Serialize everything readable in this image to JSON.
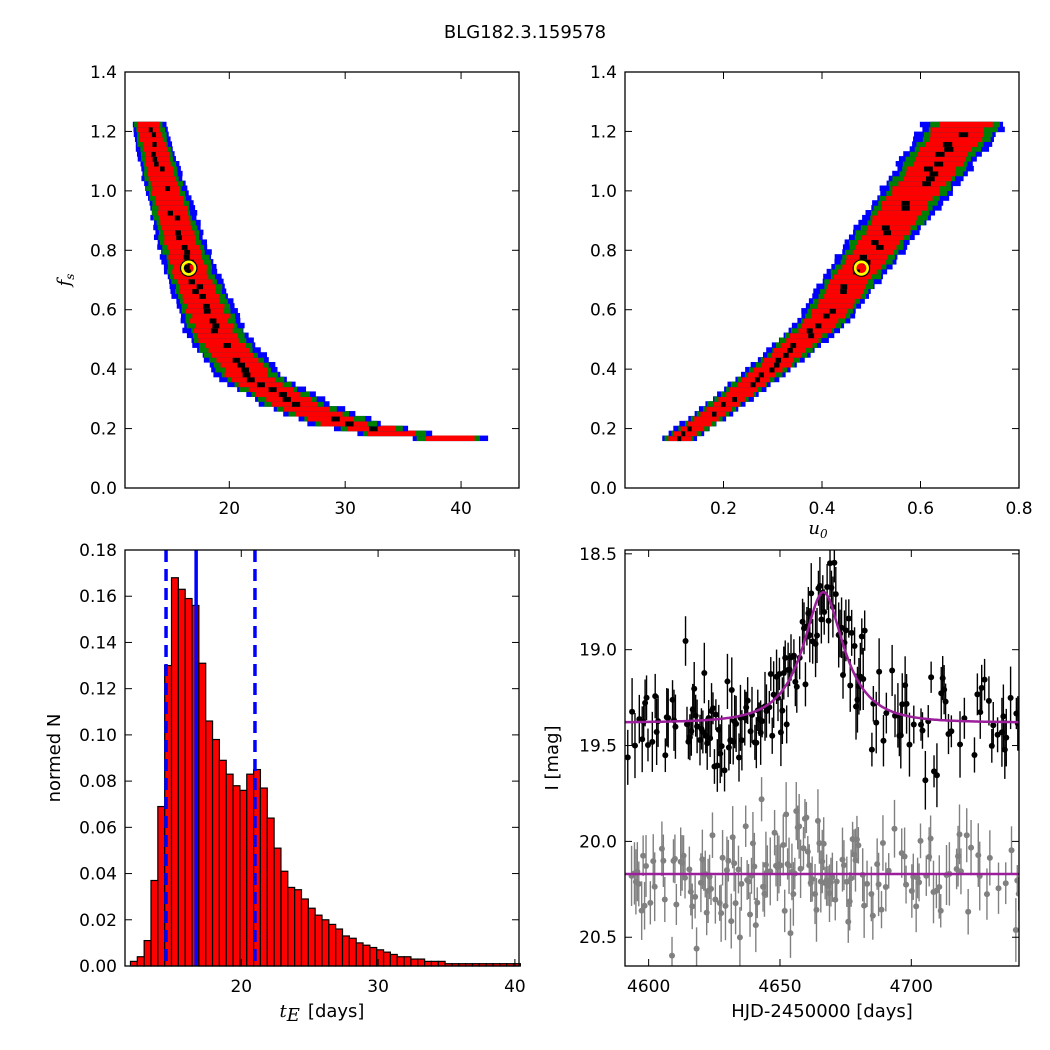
{
  "title": "BLG182.3.159578",
  "panels": {
    "top_left": {
      "ylabel_main": "f",
      "ylabel_sub": "s",
      "xlim": [
        11,
        45
      ],
      "ylim": [
        0,
        1.4
      ],
      "xticks": [
        "20",
        "30",
        "40"
      ],
      "yticks": [
        "0.0",
        "0.2",
        "0.4",
        "0.6",
        "0.8",
        "1.0",
        "1.2",
        "1.4"
      ]
    },
    "top_right": {
      "xlabel_main": "u",
      "xlabel_sub": "0",
      "xlim": [
        0,
        0.8
      ],
      "ylim": [
        0,
        1.4
      ],
      "xticks": [
        "0.2",
        "0.4",
        "0.6",
        "0.8"
      ],
      "yticks": [
        "0.0",
        "0.2",
        "0.4",
        "0.6",
        "0.8",
        "1.0",
        "1.2",
        "1.4"
      ]
    },
    "bottom_left": {
      "xlabel_main": "t",
      "xlabel_sub": "E",
      "xlabel_unit": "[days]",
      "ylabel": "normed N",
      "xticks": [
        "20",
        "30",
        "40"
      ],
      "yticks": [
        "0.00",
        "0.02",
        "0.04",
        "0.06",
        "0.08",
        "0.10",
        "0.12",
        "0.14",
        "0.16",
        "0.18"
      ]
    },
    "bottom_right": {
      "xlabel": "HJD-2450000 [days]",
      "ylabel": "I [mag]",
      "xticks": [
        "4600",
        "4650",
        "4700"
      ],
      "yticks": [
        "18.5",
        "19.0",
        "19.5",
        "20.0",
        "20.5"
      ]
    }
  },
  "colors": {
    "sigma3": "#0000ff",
    "sigma2": "#008000",
    "sigma1": "#ff0000",
    "best_region": "#000000",
    "best_fit_marker": "#ffff00",
    "hist_fill": "#ff0000",
    "hist_edge": "#000000",
    "percentile_lines": "#0000ff",
    "model_curve": "#9b1f9b",
    "data_main": "#000000",
    "data_secondary": "#808080"
  },
  "chart_data": [
    {
      "type": "heatmap",
      "panel": "top_left",
      "xlim": [
        11,
        45
      ],
      "ylim": [
        0,
        1.4
      ],
      "note_levels": [
        "1-sigma (red)",
        "2-sigma (green)",
        "3-sigma (blue)"
      ],
      "best_fit": {
        "x": 16.5,
        "y": 0.74
      },
      "ridge": [
        [
          13.0,
          1.22
        ],
        [
          14.5,
          1.0
        ],
        [
          16.5,
          0.74
        ],
        [
          19.0,
          0.5
        ],
        [
          22.0,
          0.36
        ],
        [
          26.0,
          0.27
        ],
        [
          30.0,
          0.21
        ],
        [
          35.0,
          0.17
        ],
        [
          39.0,
          0.16
        ]
      ]
    },
    {
      "type": "heatmap",
      "panel": "top_right",
      "xlim": [
        0,
        0.8
      ],
      "ylim": [
        0,
        1.4
      ],
      "best_fit": {
        "x": 0.48,
        "y": 0.74
      },
      "ridge": [
        [
          0.11,
          0.16
        ],
        [
          0.2,
          0.27
        ],
        [
          0.3,
          0.4
        ],
        [
          0.4,
          0.55
        ],
        [
          0.48,
          0.74
        ],
        [
          0.56,
          0.92
        ],
        [
          0.63,
          1.08
        ],
        [
          0.69,
          1.22
        ]
      ]
    },
    {
      "type": "bar",
      "panel": "bottom_left",
      "xlim": [
        11.5,
        40.3
      ],
      "ylim": [
        0,
        0.18
      ],
      "bin_width": 0.5,
      "bin_start": 11.9,
      "values": [
        0.002,
        0.004,
        0.011,
        0.037,
        0.069,
        0.13,
        0.168,
        0.163,
        0.159,
        0.156,
        0.131,
        0.106,
        0.098,
        0.089,
        0.083,
        0.078,
        0.076,
        0.083,
        0.085,
        0.077,
        0.064,
        0.051,
        0.041,
        0.034,
        0.033,
        0.029,
        0.025,
        0.022,
        0.02,
        0.018,
        0.016,
        0.013,
        0.012,
        0.01,
        0.009,
        0.008,
        0.007,
        0.006,
        0.005,
        0.004,
        0.004,
        0.003,
        0.003,
        0.002,
        0.002,
        0.002,
        0.001,
        0.001,
        0.001,
        0.001,
        0.001,
        0.001,
        0.001,
        0.001,
        0.001,
        0.001,
        0.001
      ],
      "percentiles": {
        "low": 14.5,
        "median": 16.7,
        "high": 21.0
      }
    },
    {
      "type": "scatter",
      "panel": "bottom_right",
      "xlim": [
        4591,
        4741
      ],
      "ylim": [
        20.65,
        18.48
      ],
      "series": [
        {
          "role": "observed",
          "baseline": 19.35,
          "scatter": 0.15
        },
        {
          "role": "secondary",
          "baseline": 20.17,
          "scatter": 0.15
        }
      ],
      "model": {
        "t0": 4666.5,
        "peak_mag": 18.7,
        "baseline": 19.38,
        "tE": 16.7,
        "u0": 0.48,
        "secondary_baseline": 20.17
      }
    }
  ]
}
